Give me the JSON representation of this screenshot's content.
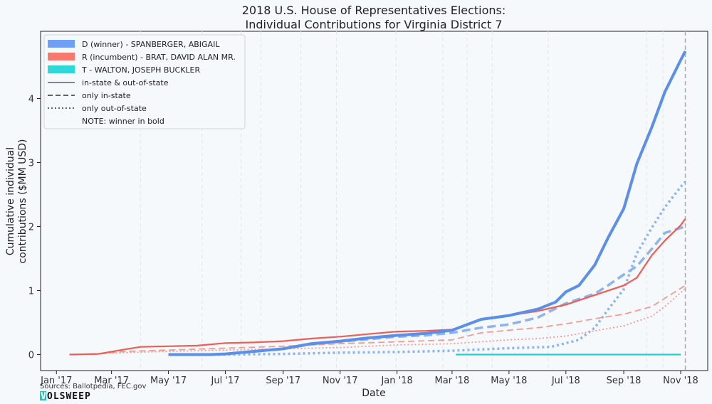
{
  "chart_data": {
    "type": "line",
    "title": [
      "2018 U.S. House of Representatives Elections:",
      "Individual Contributions for Virginia District 7"
    ],
    "xlabel": "Date",
    "ylabel": [
      "Cumulative individual",
      "contributions ($MM USD)"
    ],
    "xlim": [
      "2016-12-15",
      "2018-11-30"
    ],
    "ylim": [
      -0.25,
      5.05
    ],
    "x_ticks": [
      {
        "date": "2017-01-01",
        "label": "Jan '17"
      },
      {
        "date": "2017-03-01",
        "label": "Mar '17"
      },
      {
        "date": "2017-05-01",
        "label": "May '17"
      },
      {
        "date": "2017-07-01",
        "label": "Jul '17"
      },
      {
        "date": "2017-09-01",
        "label": "Sep '17"
      },
      {
        "date": "2017-11-01",
        "label": "Nov '17"
      },
      {
        "date": "2018-01-01",
        "label": "Jan '18"
      },
      {
        "date": "2018-03-01",
        "label": "Mar '18"
      },
      {
        "date": "2018-05-01",
        "label": "May '18"
      },
      {
        "date": "2018-07-01",
        "label": "Jul '18"
      },
      {
        "date": "2018-09-01",
        "label": "Sep '18"
      },
      {
        "date": "2018-11-01",
        "label": "Nov '18"
      }
    ],
    "y_ticks": [
      0,
      1,
      2,
      3,
      4
    ],
    "grid_vertical_dates": [
      "2017-04-01",
      "2017-06-06",
      "2017-07-18",
      "2017-08-08",
      "2017-09-20",
      "2017-10-28",
      "2017-12-31",
      "2018-02-19",
      "2018-03-17",
      "2018-04-13",
      "2018-06-12",
      "2018-09-25",
      "2018-10-13"
    ],
    "election_day": "2018-11-06",
    "legend_position": "top-left",
    "legend": [
      {
        "label": "D (winner) - SPANBERGER, ABIGAIL",
        "kind": "patch",
        "color": "#6ea0f5"
      },
      {
        "label": "R (incumbent) - BRAT, DAVID ALAN MR.",
        "kind": "patch",
        "color": "#f7786c"
      },
      {
        "label": "T - WALTON, JOSEPH BUCKLER",
        "kind": "patch",
        "color": "#2fd8d8"
      },
      {
        "label": "in-state & out-of-state",
        "kind": "solid"
      },
      {
        "label": "only in-state",
        "kind": "dashed"
      },
      {
        "label": "only out-of-state",
        "kind": "dotted"
      },
      {
        "label": "NOTE: winner in bold",
        "kind": "none"
      }
    ],
    "series": [
      {
        "name": "D (winner) - SPANBERGER, ABIGAIL",
        "subset": "in-state & out-of-state",
        "color": "#5b8fea",
        "style": "solid",
        "bold": true,
        "points": [
          [
            "2017-05-01",
            0
          ],
          [
            "2017-06-15",
            0
          ],
          [
            "2017-07-01",
            0.01
          ],
          [
            "2017-08-01",
            0.05
          ],
          [
            "2017-09-01",
            0.09
          ],
          [
            "2017-10-01",
            0.17
          ],
          [
            "2017-11-01",
            0.21
          ],
          [
            "2017-12-01",
            0.26
          ],
          [
            "2018-01-01",
            0.3
          ],
          [
            "2018-02-01",
            0.33
          ],
          [
            "2018-03-01",
            0.38
          ],
          [
            "2018-04-01",
            0.55
          ],
          [
            "2018-05-01",
            0.61
          ],
          [
            "2018-06-01",
            0.71
          ],
          [
            "2018-06-20",
            0.82
          ],
          [
            "2018-07-01",
            0.98
          ],
          [
            "2018-07-15",
            1.08
          ],
          [
            "2018-08-01",
            1.4
          ],
          [
            "2018-08-15",
            1.82
          ],
          [
            "2018-09-01",
            2.28
          ],
          [
            "2018-09-15",
            2.98
          ],
          [
            "2018-10-01",
            3.55
          ],
          [
            "2018-10-15",
            4.1
          ],
          [
            "2018-11-01",
            4.6
          ],
          [
            "2018-11-06",
            4.74
          ]
        ]
      },
      {
        "name": "D (winner) - SPANBERGER, ABIGAIL",
        "subset": "only in-state",
        "color": "#8fb3f1",
        "style": "dashed",
        "bold": true,
        "points": [
          [
            "2017-05-01",
            0
          ],
          [
            "2017-06-15",
            0
          ],
          [
            "2017-07-01",
            0.01
          ],
          [
            "2017-08-01",
            0.05
          ],
          [
            "2017-09-01",
            0.09
          ],
          [
            "2017-10-01",
            0.16
          ],
          [
            "2017-11-01",
            0.2
          ],
          [
            "2017-12-01",
            0.24
          ],
          [
            "2018-01-01",
            0.28
          ],
          [
            "2018-02-01",
            0.3
          ],
          [
            "2018-03-01",
            0.34
          ],
          [
            "2018-04-01",
            0.42
          ],
          [
            "2018-05-01",
            0.47
          ],
          [
            "2018-06-01",
            0.58
          ],
          [
            "2018-07-01",
            0.8
          ],
          [
            "2018-08-01",
            0.95
          ],
          [
            "2018-08-15",
            1.08
          ],
          [
            "2018-09-01",
            1.25
          ],
          [
            "2018-09-15",
            1.38
          ],
          [
            "2018-10-01",
            1.65
          ],
          [
            "2018-10-15",
            1.9
          ],
          [
            "2018-11-06",
            2.0
          ]
        ]
      },
      {
        "name": "D (winner) - SPANBERGER, ABIGAIL",
        "subset": "only out-of-state",
        "color": "#8fb3f1",
        "style": "dotted",
        "bold": true,
        "points": [
          [
            "2017-05-01",
            0
          ],
          [
            "2017-07-01",
            0
          ],
          [
            "2017-09-01",
            0.01
          ],
          [
            "2017-11-01",
            0.03
          ],
          [
            "2018-01-01",
            0.04
          ],
          [
            "2018-03-01",
            0.06
          ],
          [
            "2018-05-01",
            0.1
          ],
          [
            "2018-06-15",
            0.12
          ],
          [
            "2018-07-15",
            0.23
          ],
          [
            "2018-08-01",
            0.42
          ],
          [
            "2018-08-15",
            0.7
          ],
          [
            "2018-09-01",
            1.02
          ],
          [
            "2018-09-15",
            1.58
          ],
          [
            "2018-10-01",
            1.98
          ],
          [
            "2018-10-15",
            2.3
          ],
          [
            "2018-11-01",
            2.62
          ],
          [
            "2018-11-06",
            2.7
          ]
        ]
      },
      {
        "name": "R (incumbent) - BRAT, DAVID ALAN MR.",
        "subset": "in-state & out-of-state",
        "color": "#ef5d54",
        "style": "solid",
        "bold": false,
        "points": [
          [
            "2017-01-15",
            0
          ],
          [
            "2017-02-15",
            0.01
          ],
          [
            "2017-03-15",
            0.08
          ],
          [
            "2017-04-01",
            0.12
          ],
          [
            "2017-05-01",
            0.13
          ],
          [
            "2017-06-01",
            0.14
          ],
          [
            "2017-07-01",
            0.18
          ],
          [
            "2017-08-01",
            0.19
          ],
          [
            "2017-09-01",
            0.21
          ],
          [
            "2017-10-01",
            0.25
          ],
          [
            "2017-11-01",
            0.28
          ],
          [
            "2017-12-01",
            0.32
          ],
          [
            "2018-01-01",
            0.36
          ],
          [
            "2018-02-01",
            0.37
          ],
          [
            "2018-03-01",
            0.39
          ],
          [
            "2018-04-01",
            0.55
          ],
          [
            "2018-05-01",
            0.61
          ],
          [
            "2018-06-01",
            0.68
          ],
          [
            "2018-07-01",
            0.78
          ],
          [
            "2018-08-01",
            0.93
          ],
          [
            "2018-09-01",
            1.08
          ],
          [
            "2018-09-15",
            1.2
          ],
          [
            "2018-10-01",
            1.55
          ],
          [
            "2018-10-15",
            1.78
          ],
          [
            "2018-11-01",
            2.02
          ],
          [
            "2018-11-06",
            2.12
          ]
        ]
      },
      {
        "name": "R (incumbent) - BRAT, DAVID ALAN MR.",
        "subset": "only in-state",
        "color": "#f59a93",
        "style": "dashed",
        "bold": false,
        "points": [
          [
            "2017-01-15",
            0
          ],
          [
            "2017-02-15",
            0.01
          ],
          [
            "2017-03-15",
            0.05
          ],
          [
            "2017-05-01",
            0.07
          ],
          [
            "2017-07-01",
            0.1
          ],
          [
            "2017-09-01",
            0.13
          ],
          [
            "2017-11-01",
            0.17
          ],
          [
            "2018-01-01",
            0.2
          ],
          [
            "2018-03-01",
            0.23
          ],
          [
            "2018-04-01",
            0.34
          ],
          [
            "2018-05-01",
            0.38
          ],
          [
            "2018-06-01",
            0.42
          ],
          [
            "2018-07-01",
            0.48
          ],
          [
            "2018-08-01",
            0.56
          ],
          [
            "2018-09-01",
            0.63
          ],
          [
            "2018-10-01",
            0.75
          ],
          [
            "2018-10-15",
            0.88
          ],
          [
            "2018-11-06",
            1.08
          ]
        ]
      },
      {
        "name": "R (incumbent) - BRAT, DAVID ALAN MR.",
        "subset": "only out-of-state",
        "color": "#f59a93",
        "style": "dotted",
        "bold": false,
        "points": [
          [
            "2017-01-15",
            0
          ],
          [
            "2017-03-15",
            0.03
          ],
          [
            "2017-05-01",
            0.05
          ],
          [
            "2017-07-01",
            0.07
          ],
          [
            "2017-09-01",
            0.09
          ],
          [
            "2017-11-01",
            0.11
          ],
          [
            "2018-01-01",
            0.15
          ],
          [
            "2018-03-01",
            0.17
          ],
          [
            "2018-04-01",
            0.2
          ],
          [
            "2018-05-01",
            0.23
          ],
          [
            "2018-06-01",
            0.25
          ],
          [
            "2018-07-01",
            0.29
          ],
          [
            "2018-08-01",
            0.37
          ],
          [
            "2018-09-01",
            0.45
          ],
          [
            "2018-10-01",
            0.6
          ],
          [
            "2018-10-15",
            0.75
          ],
          [
            "2018-11-06",
            1.03
          ]
        ]
      },
      {
        "name": "T - WALTON, JOSEPH BUCKLER",
        "subset": "in-state & out-of-state",
        "color": "#1fd0d6",
        "style": "solid",
        "bold": false,
        "points": [
          [
            "2018-03-05",
            0
          ],
          [
            "2018-11-01",
            0
          ]
        ]
      }
    ]
  },
  "source_text": "Sources: Ballotpedia, FEC.gov",
  "logo": {
    "badge": "V",
    "rest": "OLSWEEP",
    "badge_color": "#3bb8b8"
  }
}
